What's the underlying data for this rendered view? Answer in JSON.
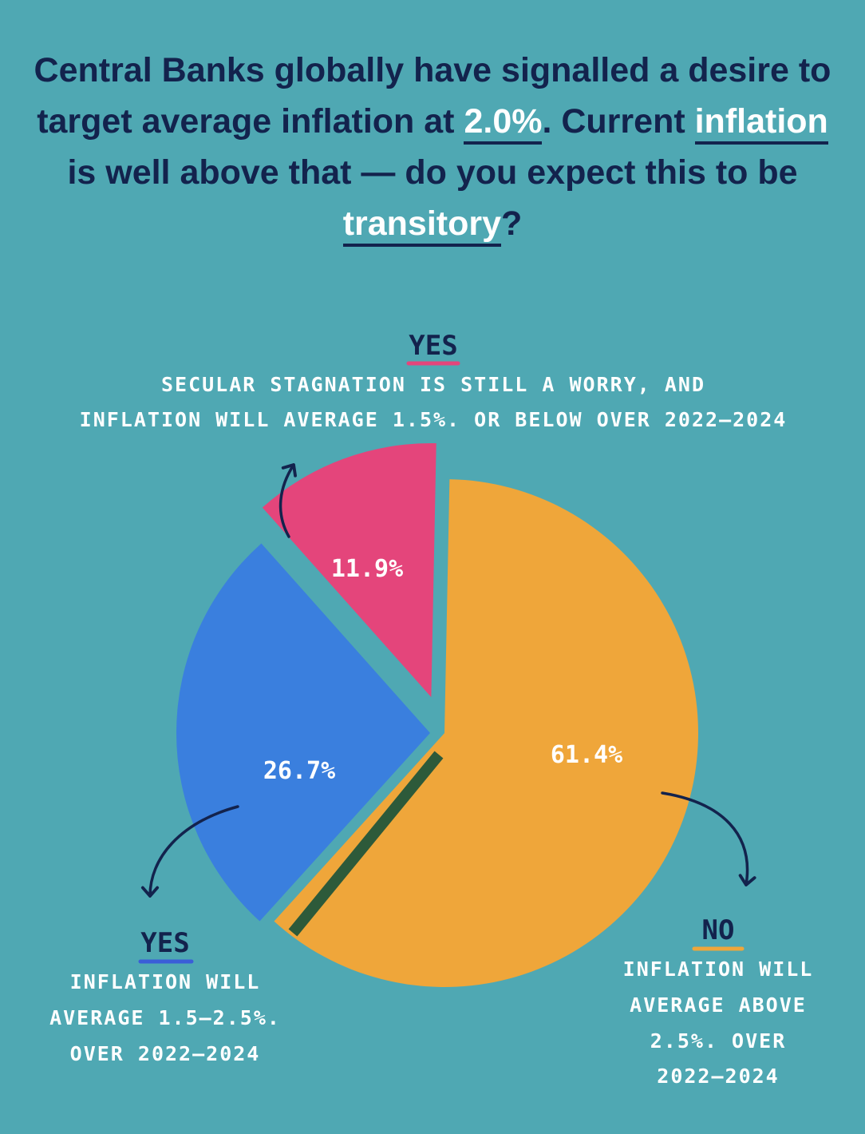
{
  "question": {
    "p1": "Central Banks globally have signalled a desire to target average inflation at ",
    "h1": "2.0%",
    "p2": ". Current ",
    "h2": "inflation",
    "p3": " is well above that — do you expect this to be ",
    "h3": "transitory",
    "p4": "?"
  },
  "chart_data": {
    "type": "pie",
    "slices": [
      {
        "value": 61.4,
        "value_label": "61.4%",
        "heading": "NO",
        "label_lines": [
          "INFLATION WILL",
          "AVERAGE ABOVE",
          "2.5%. OVER",
          "2022–2024"
        ],
        "color": "#efa63a",
        "underline_color": "#efa63a"
      },
      {
        "value": 26.7,
        "value_label": "26.7%",
        "heading": "YES",
        "label_lines": [
          "INFLATION WILL",
          "AVERAGE 1.5–2.5%.",
          "OVER 2022–2024"
        ],
        "color": "#3a7fde",
        "underline_color": "#3a5ed8"
      },
      {
        "value": 11.9,
        "value_label": "11.9%",
        "heading": "YES",
        "label_lines": [
          "SECULAR STAGNATION IS STILL A WORRY, AND",
          "INFLATION WILL AVERAGE 1.5%. OR BELOW OVER 2022–2024"
        ],
        "color": "#e4457b",
        "underline_color": "#e4457b"
      }
    ],
    "colors": {
      "background": "#4fa8b3",
      "text_dark": "#13234d",
      "divider": "#2d5a3a"
    }
  }
}
